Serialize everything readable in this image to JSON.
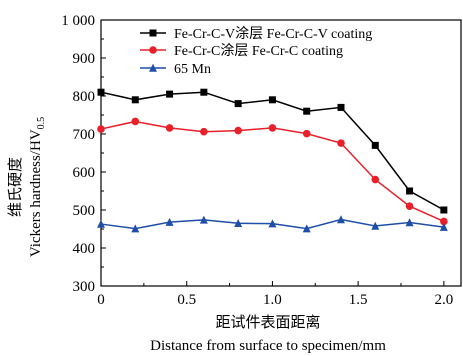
{
  "chart_data": {
    "type": "line",
    "xlabel_cn": "距试件表面距离",
    "xlabel_en": "Distance from surface to specimen/mm",
    "ylabel_cn": "维氏硬度",
    "ylabel_en": "Vickers hardness/HV",
    "ylabel_sub": "0.5",
    "xlim": [
      0,
      2.1
    ],
    "ylim": [
      300,
      1000
    ],
    "x_ticks": [
      0,
      0.5,
      1.0,
      1.5,
      2.0
    ],
    "x_tick_labels": [
      "0",
      "0.5",
      "1.0",
      "1.5",
      "2.0"
    ],
    "y_ticks": [
      300,
      400,
      500,
      600,
      700,
      800,
      900,
      1000
    ],
    "y_tick_labels": [
      "300",
      "400",
      "500",
      "600",
      "700",
      "800",
      "900",
      "1 000"
    ],
    "grid": false,
    "legend_position": "top",
    "x": [
      0,
      0.2,
      0.4,
      0.6,
      0.8,
      1.0,
      1.2,
      1.4,
      1.6,
      1.8,
      2.0
    ],
    "series": [
      {
        "name": "Fe-Cr-C-V涂层 Fe-Cr-C-V coating",
        "marker": "square",
        "color": "#000000",
        "values": [
          810,
          790,
          805,
          810,
          780,
          790,
          760,
          770,
          670,
          550,
          500
        ]
      },
      {
        "name": "Fe-Cr-C涂层 Fe-Cr-C coating",
        "marker": "circle",
        "color": "#e8202a",
        "values": [
          713,
          733,
          716,
          706,
          709,
          716,
          701,
          676,
          580,
          510,
          470
        ]
      },
      {
        "name": "65 Mn",
        "marker": "triangle",
        "color": "#1f4ea8",
        "values": [
          463,
          451,
          468,
          474,
          465,
          464,
          451,
          475,
          458,
          467,
          455
        ]
      }
    ]
  }
}
